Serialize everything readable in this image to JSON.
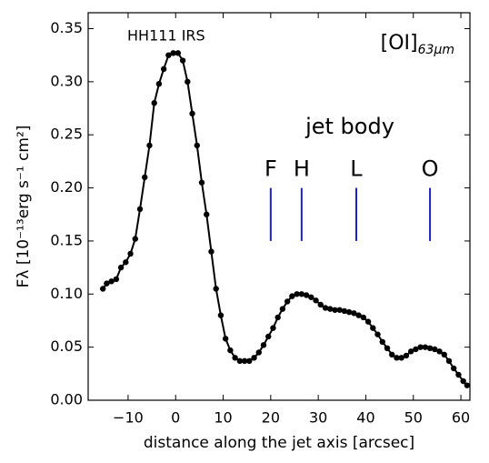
{
  "chart_data": {
    "type": "line",
    "x_label": "distance along the jet axis [arcsec]",
    "y_label": "Fλ [10⁻¹³erg s⁻¹ cm²]",
    "annotations": {
      "source": "HH111 IRS",
      "line_name": "[OI]",
      "line_sub": "63μm",
      "region": "jet body"
    },
    "knots": {
      "labels": [
        "F",
        "H",
        "L",
        "O"
      ],
      "x": [
        20,
        26.5,
        38,
        53.5
      ],
      "y_range": [
        0.15,
        0.2
      ],
      "color": "#1f1fd0"
    },
    "series": [
      {
        "color": "#000000",
        "x": [
          -15.3,
          -14.5,
          -13.5,
          -12.5,
          -11.5,
          -10.5,
          -9.5,
          -8.5,
          -7.5,
          -6.5,
          -5.5,
          -4.5,
          -3.5,
          -2.5,
          -1.5,
          -0.5,
          0.5,
          1.5,
          2.5,
          3.5,
          4.5,
          5.5,
          6.5,
          7.5,
          8.5,
          9.5,
          10.5,
          11.5,
          12.5,
          13.5,
          14.5,
          15.5,
          16.5,
          17.5,
          18.5,
          19.5,
          20.5,
          21.5,
          22.5,
          23.5,
          24.5,
          25.5,
          26.5,
          27.5,
          28.5,
          29.5,
          30.5,
          31.5,
          32.5,
          33.5,
          34.5,
          35.5,
          36.5,
          37.5,
          38.5,
          39.5,
          40.5,
          41.5,
          42.5,
          43.5,
          44.5,
          45.5,
          46.5,
          47.5,
          48.5,
          49.5,
          50.5,
          51.5,
          52.5,
          53.5,
          54.5,
          55.5,
          56.5,
          57.5,
          58.5,
          59.5,
          60.5,
          61.3
        ],
        "values": [
          0.105,
          0.11,
          0.112,
          0.114,
          0.125,
          0.13,
          0.138,
          0.152,
          0.18,
          0.21,
          0.24,
          0.28,
          0.298,
          0.312,
          0.325,
          0.327,
          0.327,
          0.32,
          0.3,
          0.27,
          0.24,
          0.205,
          0.175,
          0.14,
          0.105,
          0.08,
          0.058,
          0.047,
          0.04,
          0.037,
          0.037,
          0.037,
          0.04,
          0.045,
          0.052,
          0.06,
          0.068,
          0.078,
          0.086,
          0.093,
          0.098,
          0.1,
          0.1,
          0.099,
          0.097,
          0.094,
          0.09,
          0.087,
          0.086,
          0.085,
          0.085,
          0.084,
          0.083,
          0.082,
          0.08,
          0.078,
          0.074,
          0.068,
          0.062,
          0.055,
          0.049,
          0.043,
          0.04,
          0.04,
          0.042,
          0.046,
          0.048,
          0.05,
          0.05,
          0.049,
          0.048,
          0.046,
          0.043,
          0.037,
          0.03,
          0.024,
          0.018,
          0.014
        ]
      }
    ],
    "xlim": [
      -18.4,
      61.9
    ],
    "xticks": [
      {
        "value": -10,
        "label": "−10"
      },
      0,
      10,
      20,
      30,
      40,
      50,
      60
    ],
    "ylim": [
      0,
      0.365
    ],
    "yticks": [
      {
        "value": 0,
        "label": "0.00"
      },
      {
        "value": 0.05,
        "label": "0.05"
      },
      {
        "value": 0.1,
        "label": "0.10"
      },
      {
        "value": 0.15,
        "label": "0.15"
      },
      {
        "value": 0.2,
        "label": "0.20"
      },
      {
        "value": 0.25,
        "label": "0.25"
      },
      {
        "value": 0.3,
        "label": "0.30"
      },
      {
        "value": 0.35,
        "label": "0.35"
      }
    ]
  }
}
